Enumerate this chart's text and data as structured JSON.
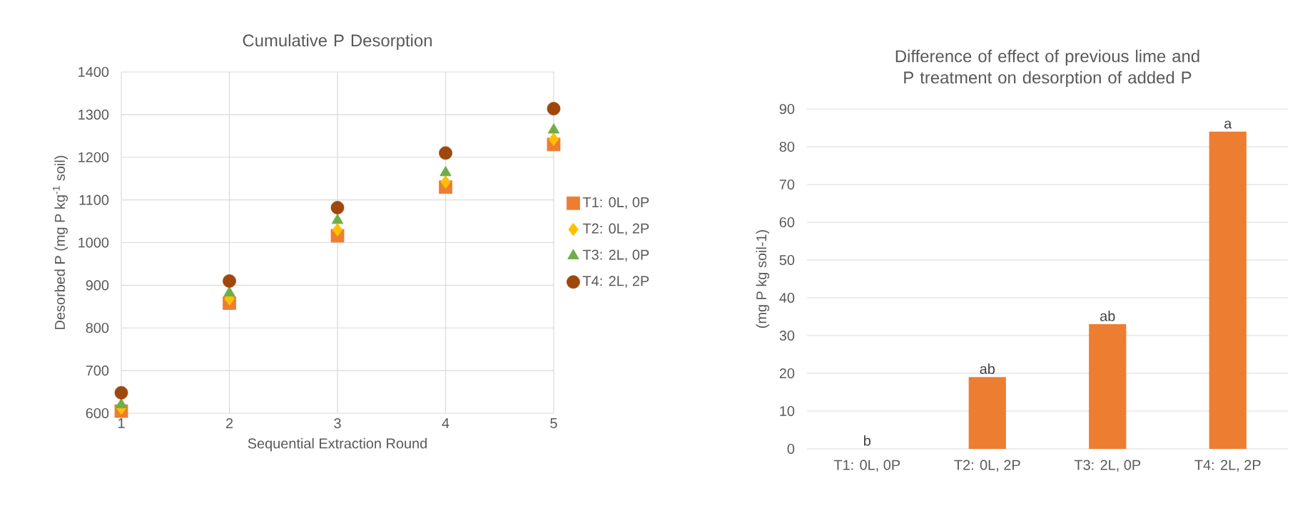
{
  "chart_data": [
    {
      "type": "scatter",
      "title": "Cumulative P Desorption",
      "xlabel": "Sequential Extraction Round",
      "ylabel": "Desorbed P (mg P kg$^{-1}$ soil)",
      "x": [
        1,
        2,
        3,
        4,
        5
      ],
      "series": [
        {
          "name": "T1: 0L, 0P",
          "color": "#ed7d31",
          "marker": "square",
          "values": [
            605,
            858,
            1016,
            1130,
            1230
          ]
        },
        {
          "name": "T2: 0L, 2P",
          "color": "#ffc000",
          "marker": "diamond",
          "values": [
            612,
            868,
            1030,
            1142,
            1242
          ]
        },
        {
          "name": "T3: 2L, 0P",
          "color": "#70ad47",
          "marker": "triangle",
          "values": [
            620,
            882,
            1052,
            1164,
            1264
          ]
        },
        {
          "name": "T4: 2L, 2P",
          "color": "#9e480e",
          "marker": "circle",
          "values": [
            648,
            910,
            1082,
            1210,
            1314
          ]
        }
      ],
      "xlim": [
        1,
        5
      ],
      "xticks": [
        1,
        2,
        3,
        4,
        5
      ],
      "ylim": [
        600,
        1400
      ],
      "yticks": [
        600,
        700,
        800,
        900,
        1000,
        1100,
        1200,
        1300,
        1400
      ],
      "grid": true,
      "legend": "right"
    },
    {
      "type": "bar",
      "title": "Difference of effect of previous lime and P treatment on desorption of added P",
      "ylabel": "(mg P kg soil-1)",
      "categories": [
        "T1: 0L, 0P",
        "T2: 0L, 2P",
        "T3: 2L, 0P",
        "T4: 2L, 2P"
      ],
      "values": [
        0,
        19,
        33,
        84
      ],
      "color": "#ed7d31",
      "ylim": [
        0,
        90
      ],
      "yticks": [
        0,
        10,
        20,
        30,
        40,
        50,
        60,
        70,
        80,
        90
      ],
      "grid": "y",
      "annotations": [
        {
          "text": "b",
          "x": "T1: 0L, 0P",
          "y": 0
        },
        {
          "text": "ab",
          "x": "T2: 0L, 2P",
          "y": 19
        },
        {
          "text": "ab",
          "x": "T3: 2L, 0P",
          "y": 33
        },
        {
          "text": "a",
          "x": "T4: 2L, 2P",
          "y": 84
        }
      ]
    }
  ]
}
